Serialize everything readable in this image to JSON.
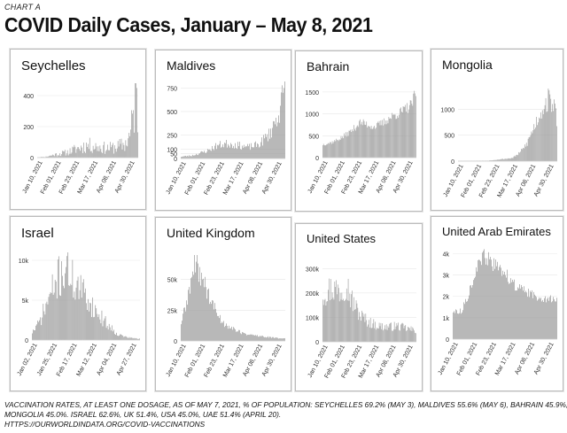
{
  "header": {
    "chart_label": "CHART A",
    "title": "COVID Daily Cases, January – May 8, 2021"
  },
  "footnote": {
    "line1": "VACCINATION RATES, AT LEAST ONE DOSAGE, AS OF MAY 7, 2021, % OF POPULATION: SEYCHELLES 69.2% (MAY 3), MALDIVES 55.6% (MAY 6), BAHRAIN 45.9%,",
    "line2": "MONGOLIA 45.0%. ISRAEL 62.6%, UK 51.4%, USA 45.0%, UAE 51.4% (APRIL 20).",
    "line3": "HTTPS://OURWORLDINDATA.ORG/COVID-VACCINATIONS"
  },
  "colors": {
    "bar": "#9a9a9a",
    "axis_text": "#333333",
    "panel_border": "#bcbcbc"
  },
  "chart_data": [
    {
      "type": "bar",
      "title": "Seychelles",
      "x_ticks": [
        "Jan 10, 2021",
        "Feb 01, 2021",
        "Feb 23, 2021",
        "Mar 17, 2021",
        "Apr 08, 2021",
        "Apr 30, 2021"
      ],
      "y_ticks": [
        "0",
        "200",
        "400"
      ],
      "y_tick_values": [
        0,
        200,
        400
      ],
      "ylim": [
        0,
        480
      ],
      "keypoints": [
        [
          0,
          2
        ],
        [
          0.08,
          5
        ],
        [
          0.18,
          20
        ],
        [
          0.3,
          35
        ],
        [
          0.4,
          60
        ],
        [
          0.5,
          80
        ],
        [
          0.6,
          70
        ],
        [
          0.7,
          60
        ],
        [
          0.8,
          70
        ],
        [
          0.88,
          90
        ],
        [
          0.93,
          150
        ],
        [
          0.96,
          300
        ],
        [
          0.98,
          430
        ],
        [
          1.0,
          280
        ]
      ],
      "noise": 0.65,
      "seed": 11
    },
    {
      "type": "bar",
      "title": "Maldives",
      "x_ticks": [
        "Jan 10, 2021",
        "Feb 01, 2021",
        "Feb 23, 2021",
        "Mar 17, 2021",
        "Apr 08, 2021",
        "Apr 30, 2021"
      ],
      "y_ticks": [
        "0",
        "50",
        "100",
        "250",
        "500",
        "750"
      ],
      "y_tick_values": [
        0,
        50,
        100,
        250,
        500,
        750
      ],
      "ylim": [
        0,
        820
      ],
      "keypoints": [
        [
          0,
          20
        ],
        [
          0.1,
          30
        ],
        [
          0.25,
          80
        ],
        [
          0.35,
          140
        ],
        [
          0.45,
          160
        ],
        [
          0.55,
          140
        ],
        [
          0.65,
          120
        ],
        [
          0.75,
          150
        ],
        [
          0.85,
          260
        ],
        [
          0.92,
          420
        ],
        [
          0.97,
          600
        ],
        [
          1.0,
          730
        ]
      ],
      "noise": 0.3,
      "seed": 23
    },
    {
      "type": "bar",
      "title": "Bahrain",
      "x_ticks": [
        "Jan 10, 2021",
        "Feb 01, 2021",
        "Feb 23, 2021",
        "Mar 17, 2021",
        "Apr 08, 2021",
        "Apr 30, 2021"
      ],
      "y_ticks": [
        "0",
        "500",
        "1000",
        "1500"
      ],
      "y_tick_values": [
        0,
        500,
        1000,
        1500
      ],
      "ylim": [
        0,
        1700
      ],
      "keypoints": [
        [
          0,
          300
        ],
        [
          0.1,
          350
        ],
        [
          0.2,
          450
        ],
        [
          0.3,
          600
        ],
        [
          0.4,
          800
        ],
        [
          0.45,
          780
        ],
        [
          0.55,
          700
        ],
        [
          0.65,
          800
        ],
        [
          0.75,
          950
        ],
        [
          0.85,
          1050
        ],
        [
          0.95,
          1200
        ],
        [
          1.0,
          1450
        ]
      ],
      "noise": 0.12,
      "seed": 37
    },
    {
      "type": "bar",
      "title": "Mongolia",
      "x_ticks": [
        "Jan 10, 2021",
        "Feb 01, 2021",
        "Feb 23, 2021",
        "Mar 17, 2021",
        "Apr 08, 2021",
        "Apr 30, 2021"
      ],
      "y_ticks": [
        "0",
        "500",
        "1000"
      ],
      "y_tick_values": [
        0,
        500,
        1000
      ],
      "ylim": [
        0,
        1400
      ],
      "keypoints": [
        [
          0,
          5
        ],
        [
          0.3,
          10
        ],
        [
          0.45,
          40
        ],
        [
          0.55,
          60
        ],
        [
          0.62,
          150
        ],
        [
          0.7,
          350
        ],
        [
          0.78,
          700
        ],
        [
          0.85,
          1000
        ],
        [
          0.92,
          1200
        ],
        [
          0.97,
          1100
        ],
        [
          1.0,
          800
        ]
      ],
      "noise": 0.2,
      "seed": 53
    },
    {
      "type": "bar",
      "title": "Israel",
      "x_ticks": [
        "Jan 02, 2021",
        "Jan 25, 2021",
        "Feb 17, 2021",
        "Mar 12, 2021",
        "Apr 04, 2021",
        "Apr 27, 2021"
      ],
      "y_ticks": [
        "0",
        "5k",
        "10k"
      ],
      "y_tick_values": [
        0,
        5000,
        10000
      ],
      "ylim": [
        0,
        11000
      ],
      "keypoints": [
        [
          0,
          1000
        ],
        [
          0.06,
          2000
        ],
        [
          0.15,
          5000
        ],
        [
          0.25,
          8000
        ],
        [
          0.32,
          9000
        ],
        [
          0.4,
          7000
        ],
        [
          0.5,
          5500
        ],
        [
          0.6,
          3500
        ],
        [
          0.7,
          2000
        ],
        [
          0.8,
          700
        ],
        [
          0.9,
          300
        ],
        [
          1.0,
          150
        ]
      ],
      "noise": 0.35,
      "seed": 71
    },
    {
      "type": "bar",
      "title": "United Kingdom",
      "x_ticks": [
        "Jan 10, 2021",
        "Feb 01, 2021",
        "Feb 23, 2021",
        "Mar 17, 2021",
        "Apr 08, 2021",
        "Apr 30, 2021"
      ],
      "y_ticks": [
        "0",
        "25k",
        "50k"
      ],
      "y_tick_values": [
        0,
        25000,
        50000
      ],
      "ylim": [
        0,
        70000
      ],
      "keypoints": [
        [
          0,
          15000
        ],
        [
          0.05,
          30000
        ],
        [
          0.12,
          58000
        ],
        [
          0.16,
          62000
        ],
        [
          0.2,
          52000
        ],
        [
          0.3,
          30000
        ],
        [
          0.4,
          15000
        ],
        [
          0.5,
          10000
        ],
        [
          0.6,
          6000
        ],
        [
          0.75,
          4000
        ],
        [
          0.9,
          2500
        ],
        [
          1.0,
          2000
        ]
      ],
      "noise": 0.2,
      "seed": 89
    },
    {
      "type": "bar",
      "title": "United States",
      "x_ticks": [
        "Jan 10, 2021",
        "Feb 01, 2021",
        "Feb 23, 2021",
        "Mar 17, 2021",
        "Apr 08, 2021",
        "Apr 30, 2021"
      ],
      "y_ticks": [
        "0",
        "100k",
        "200k",
        "300k"
      ],
      "y_tick_values": [
        0,
        100000,
        200000,
        300000
      ],
      "ylim": [
        0,
        330000
      ],
      "keypoints": [
        [
          0,
          200000
        ],
        [
          0.1,
          220000
        ],
        [
          0.2,
          210000
        ],
        [
          0.25,
          250000
        ],
        [
          0.3,
          180000
        ],
        [
          0.4,
          110000
        ],
        [
          0.5,
          80000
        ],
        [
          0.6,
          65000
        ],
        [
          0.7,
          60000
        ],
        [
          0.8,
          65000
        ],
        [
          0.9,
          55000
        ],
        [
          1.0,
          45000
        ]
      ],
      "noise": 0.3,
      "seed": 97
    },
    {
      "type": "bar",
      "title": "United Arab Emirates",
      "x_ticks": [
        "Jan 10, 2021",
        "Feb 01, 2021",
        "Feb 23, 2021",
        "Mar 17, 2021",
        "Apr 08, 2021",
        "Apr 30, 2021"
      ],
      "y_ticks": [
        "0",
        "1k",
        "2k",
        "3k",
        "4k"
      ],
      "y_tick_values": [
        0,
        1000,
        2000,
        3000,
        4000
      ],
      "ylim": [
        0,
        4300
      ],
      "keypoints": [
        [
          0,
          1300
        ],
        [
          0.08,
          1300
        ],
        [
          0.14,
          2000
        ],
        [
          0.22,
          3200
        ],
        [
          0.3,
          3900
        ],
        [
          0.38,
          3500
        ],
        [
          0.48,
          3200
        ],
        [
          0.6,
          2500
        ],
        [
          0.7,
          2200
        ],
        [
          0.8,
          2000
        ],
        [
          0.9,
          1900
        ],
        [
          1.0,
          1800
        ]
      ],
      "noise": 0.1,
      "seed": 113
    }
  ]
}
